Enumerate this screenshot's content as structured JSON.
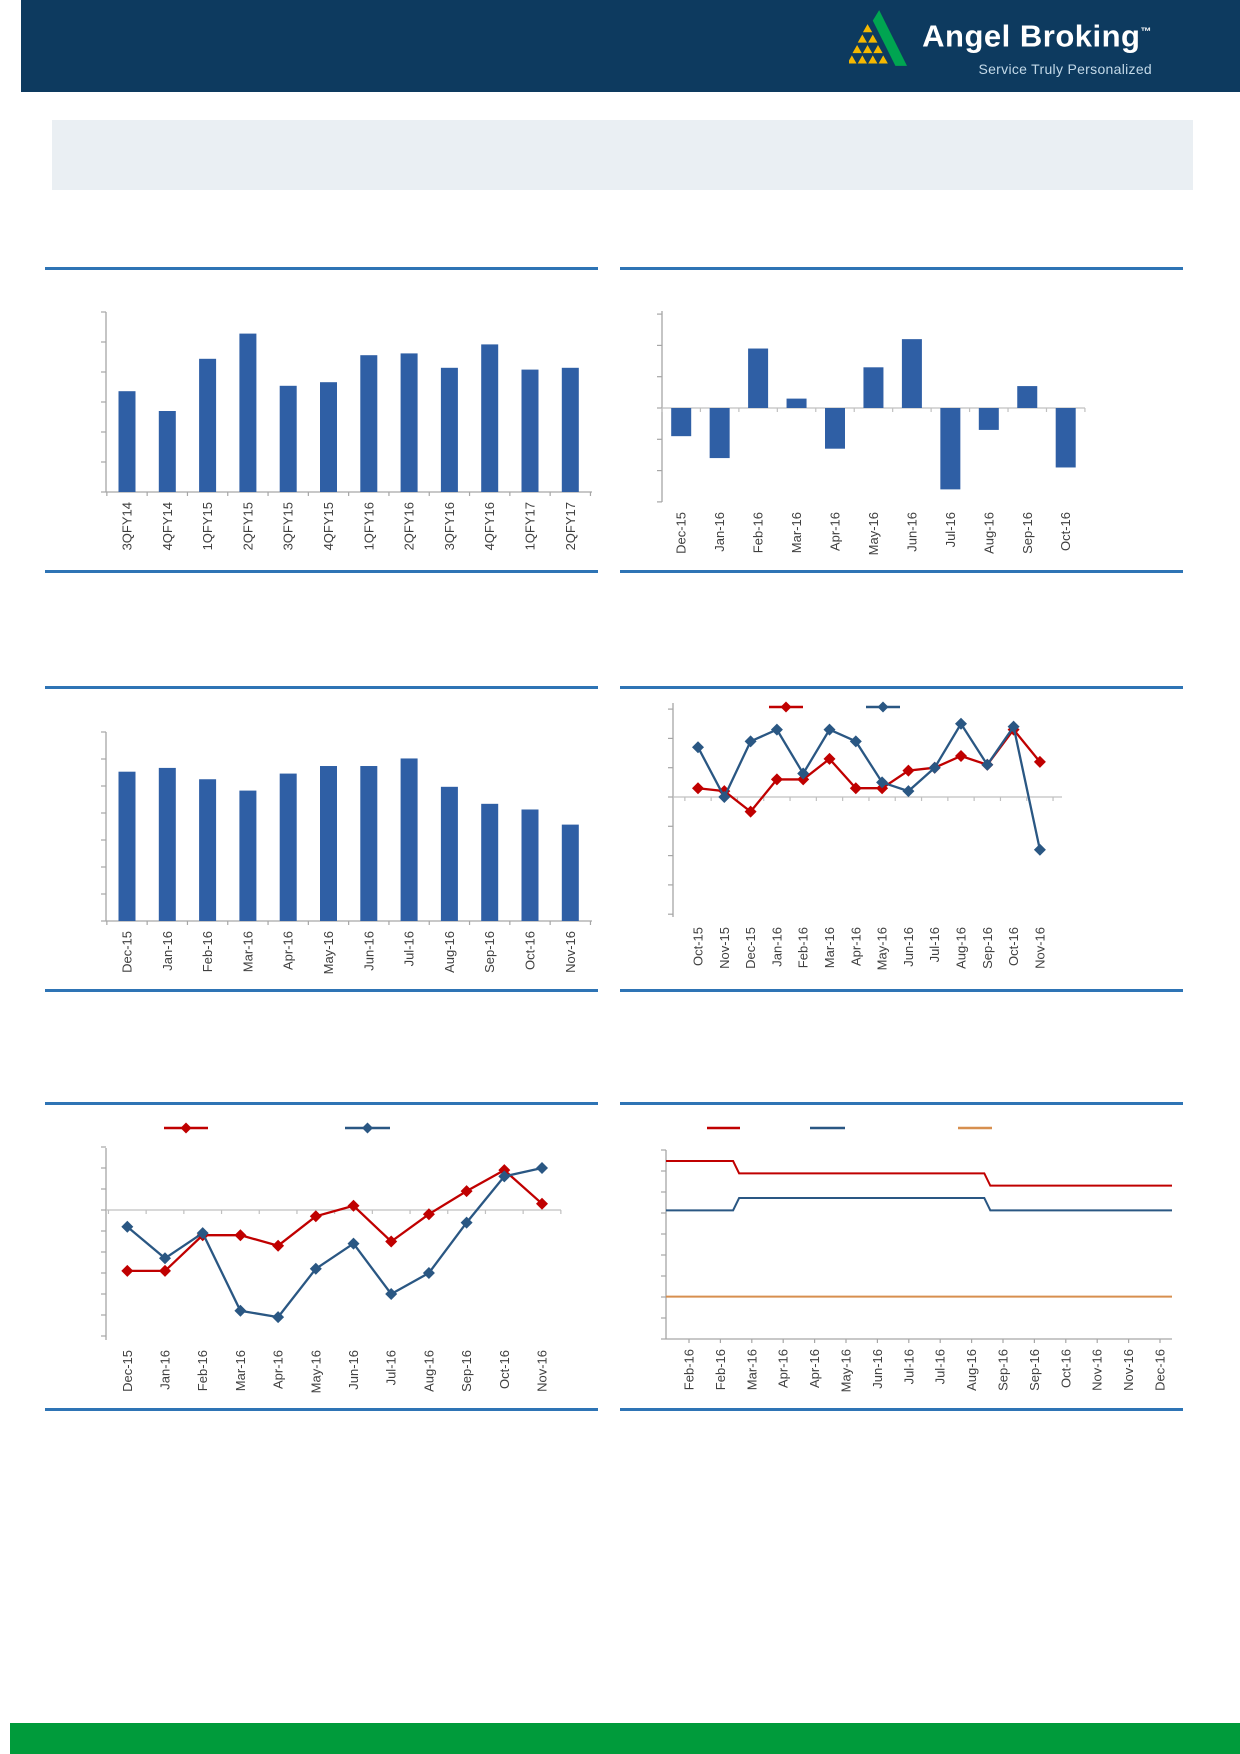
{
  "brand": {
    "name": "Angel Broking",
    "tm": "™",
    "tagline": "Service Truly Personalized",
    "navy": "#0D3A5F",
    "logo_green": "#00A551",
    "logo_yellow": "#F5B800"
  },
  "banner": {
    "text": ""
  },
  "footer": {
    "color": "#009B3B"
  },
  "divider_color": "#2E74B5",
  "note": "Chart titles, legend texts and axis value labels are not visible in the source image; series values are estimated in implied axis units.",
  "chart_data": [
    {
      "type": "bar",
      "title": "",
      "bar_color": "#2F5FA5",
      "categories": [
        "3QFY14",
        "4QFY14",
        "1QFY15",
        "2QFY15",
        "3QFY15",
        "4QFY15",
        "1QFY16",
        "2QFY16",
        "3QFY16",
        "4QFY16",
        "1QFY17",
        "2QFY17"
      ],
      "values": [
        56,
        45,
        74,
        88,
        59,
        61,
        76,
        77,
        69,
        82,
        68,
        69
      ],
      "xlabel": "",
      "ylabel": "",
      "ylim": [
        0,
        100
      ],
      "grid": false,
      "legend": "none"
    },
    {
      "type": "bar",
      "title": "",
      "bar_color": "#2F5FA5",
      "categories": [
        "Dec-15",
        "Jan-16",
        "Feb-16",
        "Mar-16",
        "Apr-16",
        "May-16",
        "Jun-16",
        "Jul-16",
        "Aug-16",
        "Sep-16",
        "Oct-16"
      ],
      "values": [
        -0.9,
        -1.6,
        1.9,
        0.3,
        -1.3,
        1.3,
        2.2,
        -2.6,
        -0.7,
        0.7,
        -1.9
      ],
      "xlabel": "",
      "ylabel": "",
      "ylim": [
        -3.0,
        3.1
      ],
      "grid": false,
      "legend": "none"
    },
    {
      "type": "bar",
      "title": "",
      "bar_color": "#2F5FA5",
      "categories": [
        "Dec-15",
        "Jan-16",
        "Feb-16",
        "Mar-16",
        "Apr-16",
        "May-16",
        "Jun-16",
        "Jul-16",
        "Aug-16",
        "Sep-16",
        "Oct-16",
        "Nov-16"
      ],
      "values": [
        79,
        81,
        75,
        69,
        78,
        82,
        82,
        86,
        71,
        62,
        59,
        51
      ],
      "xlabel": "",
      "ylabel": "",
      "ylim": [
        0,
        100
      ],
      "grid": false,
      "legend": "none"
    },
    {
      "type": "line",
      "title": "",
      "categories": [
        "Oct-15",
        "Nov-15",
        "Dec-15",
        "Jan-16",
        "Feb-16",
        "Mar-16",
        "Apr-16",
        "May-16",
        "Jun-16",
        "Jul-16",
        "Aug-16",
        "Sep-16",
        "Oct-16",
        "Nov-16"
      ],
      "series": [
        {
          "name": "series-red",
          "color": "#C00000",
          "marker": "diamond",
          "values": [
            0.3,
            0.2,
            -0.5,
            0.6,
            0.6,
            1.3,
            0.3,
            0.3,
            0.9,
            1.0,
            1.4,
            1.1,
            2.3,
            1.2
          ]
        },
        {
          "name": "series-blue",
          "color": "#2A5783",
          "marker": "diamond",
          "values": [
            1.7,
            0.0,
            1.9,
            2.3,
            0.8,
            2.3,
            1.9,
            0.5,
            0.2,
            1.0,
            2.5,
            1.1,
            2.4,
            -1.8
          ]
        }
      ],
      "xlabel": "",
      "ylabel": "",
      "ylim": [
        -4.1,
        3.2
      ],
      "grid": false,
      "legend": "top (labels not visible)"
    },
    {
      "type": "line",
      "title": "",
      "categories": [
        "Dec-15",
        "Jan-16",
        "Feb-16",
        "Mar-16",
        "Apr-16",
        "May-16",
        "Jun-16",
        "Jul-16",
        "Aug-16",
        "Sep-16",
        "Oct-16",
        "Nov-16"
      ],
      "series": [
        {
          "name": "series-red",
          "color": "#C00000",
          "marker": "diamond",
          "values": [
            -2.9,
            -2.9,
            -1.2,
            -1.2,
            -1.7,
            -0.3,
            0.2,
            -1.5,
            -0.2,
            0.9,
            1.9,
            0.3
          ]
        },
        {
          "name": "series-blue",
          "color": "#2A5783",
          "marker": "diamond",
          "values": [
            -0.8,
            -2.3,
            -1.1,
            -4.8,
            -5.1,
            -2.8,
            -1.6,
            -4.0,
            -3.0,
            -0.6,
            1.6,
            2.0
          ]
        }
      ],
      "xlabel": "",
      "ylabel": "",
      "ylim": [
        -6.2,
        3.0
      ],
      "grid": false,
      "legend": "top (labels not visible)"
    },
    {
      "type": "step-line",
      "title": "",
      "categories": [
        "Feb-16",
        "Feb-16",
        "Mar-16",
        "Apr-16",
        "Apr-16",
        "May-16",
        "Jun-16",
        "Jul-16",
        "Jul-16",
        "Aug-16",
        "Sep-16",
        "Sep-16",
        "Oct-16",
        "Nov-16",
        "Nov-16",
        "Dec-16"
      ],
      "series": [
        {
          "name": "series-red",
          "color": "#C00000",
          "marker": "none",
          "values": [
            6.75,
            6.75,
            6.5,
            6.5,
            6.5,
            6.5,
            6.5,
            6.5,
            6.5,
            6.5,
            6.25,
            6.25,
            6.25,
            6.25,
            6.25,
            6.25
          ]
        },
        {
          "name": "series-blue",
          "color": "#2A5783",
          "marker": "none",
          "values": [
            5.75,
            5.75,
            6.0,
            6.0,
            6.0,
            6.0,
            6.0,
            6.0,
            6.0,
            6.0,
            5.75,
            5.75,
            5.75,
            5.75,
            5.75,
            5.75
          ]
        },
        {
          "name": "series-orange",
          "color": "#D78F4F",
          "marker": "none",
          "values": [
            4.0,
            4.0,
            4.0,
            4.0,
            4.0,
            4.0,
            4.0,
            4.0,
            4.0,
            4.0,
            4.0,
            4.0,
            4.0,
            4.0,
            4.0,
            4.0
          ]
        }
      ],
      "xlabel": "",
      "ylabel": "",
      "ylim": [
        3.1,
        7.0
      ],
      "grid": false,
      "legend": "top (labels not visible)"
    }
  ]
}
